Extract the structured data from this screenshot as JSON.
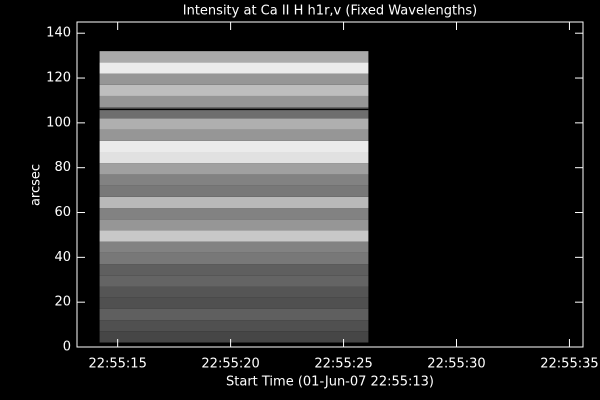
{
  "chart_data": {
    "type": "image",
    "title": "Intensity at Ca II H h1r,v (Fixed Wavelengths)",
    "x_label": "Start Time (01-Jun-07 22:55:13)",
    "y_label": "arcsec",
    "xlim": [
      13.2,
      35.6
    ],
    "xticks": [
      {
        "value": 15,
        "label": "22:55:15"
      },
      {
        "value": 20,
        "label": "22:55:20"
      },
      {
        "value": 25,
        "label": "22:55:25"
      },
      {
        "value": 30,
        "label": "22:55:30"
      },
      {
        "value": 35,
        "label": "22:55:35"
      }
    ],
    "ylim": [
      0,
      145
    ],
    "yticks": [
      0,
      20,
      40,
      60,
      80,
      100,
      120,
      140
    ],
    "colormap": "gray",
    "x_extent": [
      14.2,
      26.1
    ],
    "ybins": [
      2,
      7,
      12,
      17,
      22,
      27,
      32,
      37,
      42,
      47,
      52,
      57,
      62,
      67,
      72,
      77,
      82,
      87,
      92,
      97,
      102,
      107,
      112,
      117,
      122,
      127,
      132
    ],
    "values": [
      70,
      80,
      95,
      80,
      85,
      100,
      95,
      120,
      130,
      200,
      150,
      130,
      185,
      120,
      130,
      160,
      225,
      235,
      150,
      175,
      110,
      150,
      190,
      150,
      235,
      170
    ],
    "hline": 106
  }
}
